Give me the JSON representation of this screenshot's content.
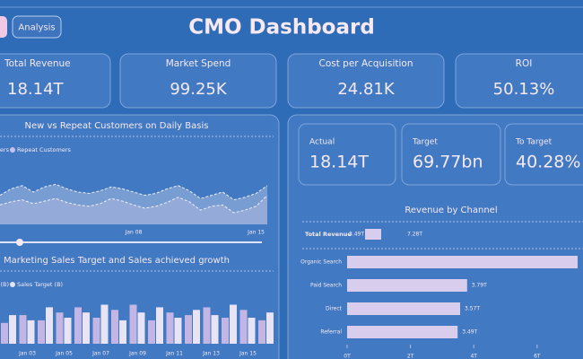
{
  "header": {
    "button": "Analysis",
    "title": "CMO Dashboard"
  },
  "kpis": [
    {
      "label": "Total Revenue",
      "value": "18.14T"
    },
    {
      "label": "Market Spend",
      "value": "99.25K"
    },
    {
      "label": "Cost per Acquisition",
      "value": "24.81K"
    },
    {
      "label": "ROI",
      "value": "50.13%"
    }
  ],
  "targets": [
    {
      "label": "Actual",
      "value": "18.14T"
    },
    {
      "label": "Target",
      "value": "69.77bn"
    },
    {
      "label": "To Target",
      "value": "40.28%"
    }
  ],
  "chart_data": [
    {
      "type": "area",
      "title": "New vs Repeat Customers on Daily Basis",
      "x": [
        null,
        null,
        null,
        null,
        null,
        null,
        null,
        null,
        null,
        null,
        null,
        null,
        "Jan 08",
        null,
        null,
        null,
        null,
        null,
        null,
        null,
        null,
        null,
        null,
        "Jan 15",
        null
      ],
      "ylim": [
        0,
        100
      ],
      "series": [
        {
          "name": "New Customers",
          "color": "#dfe3f4",
          "values": [
            45,
            55,
            60,
            50,
            58,
            62,
            55,
            50,
            48,
            52,
            58,
            55,
            50,
            45,
            48,
            55,
            60,
            52,
            40,
            45,
            50,
            38,
            42,
            48,
            60
          ]
        },
        {
          "name": "Repeat Customers",
          "color": "#c9c2e6",
          "values": [
            30,
            35,
            38,
            32,
            36,
            40,
            34,
            30,
            28,
            32,
            40,
            36,
            30,
            25,
            28,
            34,
            42,
            35,
            22,
            28,
            30,
            18,
            22,
            28,
            45
          ]
        }
      ]
    },
    {
      "type": "bar",
      "title": "Marketing Sales Target and Sales achieved growth",
      "categories": [
        null,
        "Jan 03",
        null,
        "Jan 05",
        null,
        "Jan 07",
        null,
        "Jan 09",
        null,
        "Jan 11",
        null,
        "Jan 13",
        null,
        "Jan 15",
        null
      ],
      "ylim": [
        0,
        100
      ],
      "series": [
        {
          "name": "Sales (B)",
          "color": "#c3b6e4",
          "values": [
            40,
            55,
            45,
            60,
            70,
            50,
            65,
            75,
            45,
            60,
            55,
            70,
            50,
            65,
            45
          ]
        },
        {
          "name": "Sales Target (B)",
          "color": "#e9e3f6",
          "values": [
            55,
            45,
            70,
            50,
            60,
            75,
            45,
            60,
            70,
            50,
            65,
            55,
            75,
            50,
            60
          ]
        }
      ]
    },
    {
      "type": "hbar",
      "title": "Revenue by Channel",
      "filter": {
        "label": "Total Revenue",
        "min": "3.49T",
        "max": "7.28T"
      },
      "categories": [
        "Organic Search",
        "Paid Search",
        "Direct",
        "Referral"
      ],
      "values": [
        7.28,
        3.79,
        3.57,
        3.49
      ],
      "value_labels": [
        null,
        "3.79T",
        "3.57T",
        "3.49T"
      ],
      "color": "#d9cdee",
      "xlim": [
        0,
        7.45
      ],
      "xticks": [
        {
          "value": 0,
          "label": "0T"
        },
        {
          "value": 2,
          "label": "2T"
        },
        {
          "value": 4,
          "label": "4T"
        },
        {
          "value": 6,
          "label": "6T"
        }
      ]
    }
  ]
}
